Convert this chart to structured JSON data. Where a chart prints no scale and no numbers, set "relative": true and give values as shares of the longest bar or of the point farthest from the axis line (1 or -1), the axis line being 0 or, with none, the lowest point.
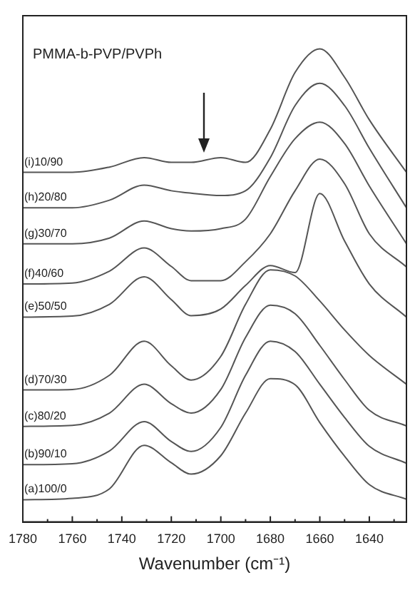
{
  "chart_data": {
    "type": "line",
    "title": "PMMA-b-PVP/PVPh",
    "xlabel": "Wavenumber (cm⁻¹)",
    "relative": true,
    "legend": false,
    "grid": false,
    "marker": "none",
    "line_style": "solid",
    "xlim": [
      1780,
      1625
    ],
    "xticks": [
      1780,
      {
        "value": 1770,
        "label": null
      },
      1760,
      {
        "value": 1750,
        "label": null
      },
      1740,
      {
        "value": 1730,
        "label": null
      },
      1720,
      {
        "value": 1710,
        "label": null
      },
      1700,
      {
        "value": 1690,
        "label": null
      },
      1680,
      {
        "value": 1670,
        "label": null
      },
      1660,
      {
        "value": 1650,
        "label": null
      },
      1640,
      {
        "value": 1630,
        "label": null
      }
    ],
    "x": [
      1780,
      1760,
      1745,
      1731,
      1720,
      1712,
      1700,
      1690,
      1680,
      1670,
      1660,
      1650,
      1640,
      1625
    ],
    "series": [
      {
        "name": "(a)100/0",
        "color": "#555555",
        "values": [
          0.047,
          0.05,
          0.07,
          0.162,
          0.125,
          0.101,
          0.14,
          0.23,
          0.303,
          0.29,
          0.21,
          0.139,
          0.079,
          0.048
        ]
      },
      {
        "name": "(b)90/10",
        "color": "#555555",
        "values": [
          0.121,
          0.123,
          0.15,
          0.212,
          0.17,
          0.149,
          0.2,
          0.31,
          0.382,
          0.36,
          0.291,
          0.221,
          0.16,
          0.124
        ]
      },
      {
        "name": "(c)80/20",
        "color": "#555555",
        "values": [
          0.202,
          0.204,
          0.23,
          0.291,
          0.25,
          0.23,
          0.28,
          0.39,
          0.458,
          0.44,
          0.373,
          0.301,
          0.236,
          0.203
        ]
      },
      {
        "name": "(d)70/30",
        "color": "#555555",
        "values": [
          0.279,
          0.28,
          0.31,
          0.382,
          0.33,
          0.3,
          0.35,
          0.46,
          0.533,
          0.52,
          0.467,
          0.406,
          0.352,
          0.291
        ]
      },
      {
        "name": "(e)50/50",
        "color": "#555555",
        "values": [
          0.433,
          0.435,
          0.46,
          0.518,
          0.47,
          0.436,
          0.45,
          0.5,
          0.542,
          0.527,
          0.694,
          0.594,
          0.503,
          0.433
        ]
      },
      {
        "name": "(f)40/60",
        "color": "#555555",
        "values": [
          0.503,
          0.505,
          0.53,
          0.579,
          0.54,
          0.51,
          0.51,
          0.55,
          0.609,
          0.7,
          0.767,
          0.715,
          0.609,
          0.539
        ]
      },
      {
        "name": "(g)30/70",
        "color": "#555555",
        "values": [
          0.588,
          0.588,
          0.6,
          0.636,
          0.62,
          0.615,
          0.62,
          0.64,
          0.73,
          0.81,
          0.845,
          0.8,
          0.71,
          0.588
        ]
      },
      {
        "name": "(h)20/80",
        "color": "#555555",
        "values": [
          0.664,
          0.664,
          0.68,
          0.712,
          0.7,
          0.695,
          0.69,
          0.7,
          0.77,
          0.88,
          0.927,
          0.88,
          0.79,
          0.664
        ]
      },
      {
        "name": "(i)10/90",
        "color": "#555555",
        "values": [
          0.739,
          0.739,
          0.75,
          0.77,
          0.76,
          0.76,
          0.77,
          0.76,
          0.83,
          0.95,
          1.0,
          0.94,
          0.85,
          0.739
        ]
      }
    ]
  }
}
